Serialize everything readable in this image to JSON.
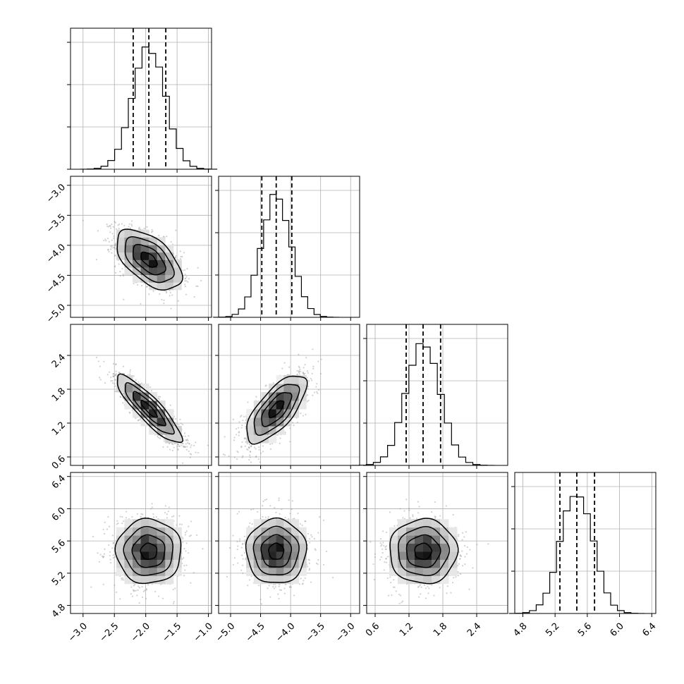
{
  "chart_data": {
    "type": "corner",
    "grid": true,
    "colors": {
      "line": "#000000",
      "grid": "#b0b0b0",
      "samples": "#9a9a9a"
    },
    "parameters": [
      {
        "index": 0,
        "range": [
          -3.2,
          -0.95
        ],
        "ticks": [
          -3.0,
          -2.5,
          -2.0,
          -1.5,
          -1.0
        ],
        "tick_labels": [
          "−3.0",
          "−2.5",
          "−2.0",
          "−1.5",
          "−1.0"
        ],
        "quantiles": [
          -2.2,
          -1.95,
          -1.68
        ],
        "median": -1.95,
        "sigma": 0.26
      },
      {
        "index": 1,
        "range": [
          -5.2,
          -2.85
        ],
        "ticks": [
          -5.0,
          -4.5,
          -4.0,
          -3.5,
          -3.0
        ],
        "tick_labels": [
          "−5.0",
          "−4.5",
          "−4.0",
          "−3.5",
          "−3.0"
        ],
        "quantiles": [
          -4.48,
          -4.24,
          -3.98
        ],
        "median": -4.24,
        "sigma": 0.25
      },
      {
        "index": 2,
        "range": [
          0.45,
          2.95
        ],
        "ticks": [
          0.6,
          1.2,
          1.8,
          2.4
        ],
        "tick_labels": [
          "0.6",
          "1.2",
          "1.8",
          "2.4"
        ],
        "quantiles": [
          1.15,
          1.45,
          1.76
        ],
        "median": 1.45,
        "sigma": 0.3
      },
      {
        "index": 3,
        "range": [
          4.7,
          6.45
        ],
        "ticks": [
          4.8,
          5.2,
          5.6,
          6.0,
          6.4
        ],
        "tick_labels": [
          "4.8",
          "5.2",
          "5.6",
          "6.0",
          "6.4"
        ],
        "quantiles": [
          5.26,
          5.47,
          5.69
        ],
        "median": 5.47,
        "sigma": 0.2
      }
    ],
    "correlations": [
      {
        "x": 0,
        "y": 1,
        "rho": -0.55
      },
      {
        "x": 0,
        "y": 2,
        "rho": -0.88
      },
      {
        "x": 1,
        "y": 2,
        "rho": 0.7
      },
      {
        "x": 0,
        "y": 3,
        "rho": 0.0
      },
      {
        "x": 1,
        "y": 3,
        "rho": 0.0
      },
      {
        "x": 2,
        "y": 3,
        "rho": 0.0
      }
    ],
    "histogram_bins": 20,
    "contour_levels_sigma": [
      0.5,
      1.0,
      1.5,
      2.0
    ]
  }
}
